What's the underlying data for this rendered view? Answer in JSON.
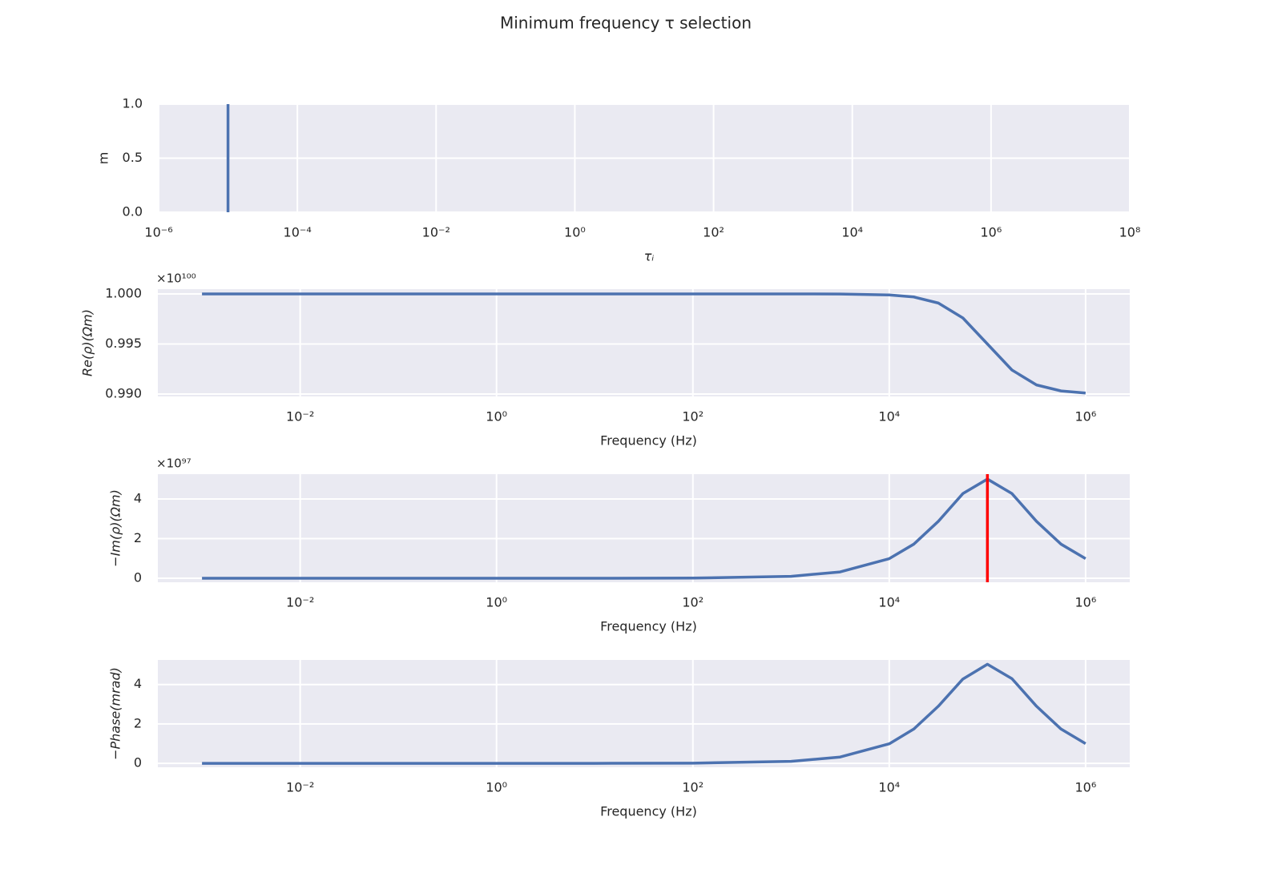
{
  "figure_title": "Minimum frequency τ selection",
  "chart_data": [
    {
      "type": "vlines",
      "x": [
        1e-05
      ],
      "values": [
        1
      ],
      "color": "#4c72b0",
      "log_x": true,
      "grid": true,
      "xlim": [
        1e-06,
        100000000
      ],
      "xticks": [
        {
          "value": 1e-06,
          "label": "10⁻⁶"
        },
        {
          "value": 0.0001,
          "label": "10⁻⁴"
        },
        {
          "value": 0.01,
          "label": "10⁻²"
        },
        {
          "value": 1,
          "label": "10⁰"
        },
        {
          "value": 100,
          "label": "10²"
        },
        {
          "value": 10000,
          "label": "10⁴"
        },
        {
          "value": 1000000,
          "label": "10⁶"
        },
        {
          "value": 100000000,
          "label": "10⁸"
        }
      ],
      "ylim": [
        0,
        1
      ],
      "yticks": [
        {
          "value": 0,
          "label": "0.0"
        },
        {
          "value": 0.5,
          "label": "0.5"
        },
        {
          "value": 1,
          "label": "1.0"
        }
      ],
      "xlabel": "τᵢ",
      "ylabel": "m"
    },
    {
      "type": "line",
      "color": "#4c72b0",
      "log_x": true,
      "grid": true,
      "x": [
        0.001,
        0.01,
        0.1,
        1,
        10,
        100,
        1000,
        3162,
        10000,
        17783,
        31623,
        56234,
        100000,
        177828,
        316228,
        562341,
        1000000
      ],
      "values": [
        1,
        1,
        1,
        1,
        1,
        1,
        1,
        0.99999,
        0.9999,
        0.9997,
        0.99909,
        0.9976,
        0.995,
        0.9924,
        0.99091,
        0.99031,
        0.9901
      ],
      "xlim": [
        0.000355,
        2818000
      ],
      "xticks": [
        {
          "value": 0.01,
          "label": "10⁻²"
        },
        {
          "value": 1,
          "label": "10⁰"
        },
        {
          "value": 100,
          "label": "10²"
        },
        {
          "value": 10000,
          "label": "10⁴"
        },
        {
          "value": 1000000,
          "label": "10⁶"
        }
      ],
      "ylim": [
        0.98976,
        1.00048
      ],
      "yticks": [
        {
          "value": 0.99,
          "label": "0.990"
        },
        {
          "value": 0.995,
          "label": "0.995"
        },
        {
          "value": 1,
          "label": "1.000"
        }
      ],
      "y_offset_label": "×10¹⁰⁰",
      "xlabel": "Frequency (Hz)",
      "ylabel": "Re(ρ)(Ωm)"
    },
    {
      "type": "line",
      "color": "#4c72b0",
      "log_x": true,
      "grid": true,
      "x": [
        0.001,
        0.01,
        0.1,
        1,
        10,
        100,
        1000,
        3162,
        10000,
        17783,
        31623,
        56234,
        100000,
        177828,
        316228,
        562341,
        1000000
      ],
      "values": [
        0,
        0,
        0,
        0,
        0,
        0.01,
        0.1,
        0.32,
        0.99,
        1.72,
        2.87,
        4.27,
        5,
        4.27,
        2.87,
        1.72,
        0.99
      ],
      "vline": {
        "x": 100000,
        "color": "#ff0000"
      },
      "xlim": [
        0.000355,
        2818000
      ],
      "xticks": [
        {
          "value": 0.01,
          "label": "10⁻²"
        },
        {
          "value": 1,
          "label": "10⁰"
        },
        {
          "value": 100,
          "label": "10²"
        },
        {
          "value": 10000,
          "label": "10⁴"
        },
        {
          "value": 1000000,
          "label": "10⁶"
        }
      ],
      "ylim": [
        -0.2,
        5.25
      ],
      "yticks": [
        0,
        2,
        4
      ],
      "y_offset_label": "×10⁹⁷",
      "xlabel": "Frequency (Hz)",
      "ylabel": "−Im(ρ)(Ωm)"
    },
    {
      "type": "line",
      "color": "#4c72b0",
      "log_x": true,
      "grid": true,
      "x": [
        0.001,
        0.01,
        0.1,
        1,
        10,
        100,
        1000,
        3162,
        10000,
        17783,
        31623,
        56234,
        100000,
        177828,
        316228,
        562341,
        1000000
      ],
      "values": [
        0,
        0,
        0,
        0,
        0,
        0.01,
        0.1,
        0.32,
        0.99,
        1.74,
        2.9,
        4.28,
        5.03,
        4.3,
        2.9,
        1.74,
        1
      ],
      "xlim": [
        0.000355,
        2818000
      ],
      "xticks": [
        {
          "value": 0.01,
          "label": "10⁻²"
        },
        {
          "value": 1,
          "label": "10⁰"
        },
        {
          "value": 100,
          "label": "10²"
        },
        {
          "value": 10000,
          "label": "10⁴"
        },
        {
          "value": 1000000,
          "label": "10⁶"
        }
      ],
      "ylim": [
        -0.2,
        5.25
      ],
      "yticks": [
        0,
        2,
        4
      ],
      "xlabel": "Frequency (Hz)",
      "ylabel": "−Phase(mrad)"
    }
  ]
}
